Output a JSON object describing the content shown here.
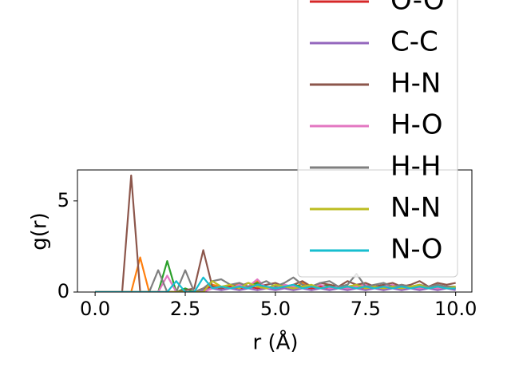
{
  "chart_data": {
    "type": "line",
    "x_label": "r (Å)",
    "y_label": "g(r)",
    "x": [
      0,
      0.25,
      0.5,
      0.75,
      1,
      1.25,
      1.5,
      1.75,
      2,
      2.25,
      2.5,
      2.75,
      3,
      3.25,
      3.5,
      3.75,
      4,
      4.25,
      4.5,
      4.75,
      5,
      5.25,
      5.5,
      5.75,
      6,
      6.25,
      6.5,
      6.75,
      7,
      7.25,
      7.5,
      7.75,
      8,
      8.25,
      8.5,
      8.75,
      9,
      9.25,
      9.5,
      9.75,
      10
    ],
    "series": [
      {
        "color": "#ff7f0e",
        "values": [
          0,
          0,
          0,
          0,
          0,
          1.9,
          0,
          0,
          0,
          0,
          0,
          0,
          0.2,
          0.4,
          0.3,
          0.2,
          0.5,
          0.3,
          0.6,
          0.2,
          0.3,
          0.4,
          0.2,
          0.5,
          0.3,
          0.2,
          0.4,
          0.3,
          0.2,
          0.3,
          0.4,
          0.2,
          0.3,
          0.2,
          0.4,
          0.3,
          0.2,
          0.3,
          0.2,
          0.3,
          0.2
        ]
      },
      {
        "color": "#2ca02c",
        "values": [
          0,
          0,
          0,
          0,
          0,
          0,
          0,
          0,
          1.7,
          0,
          0.2,
          0,
          0.1,
          0.3,
          0.2,
          0.4,
          0.2,
          0.3,
          0.5,
          0.2,
          0.3,
          0.2,
          0.4,
          0.3,
          0.2,
          0.3,
          0.4,
          0.2,
          0.3,
          0.2,
          0.3,
          0.2,
          0.4,
          0.2,
          0.3,
          0.2,
          0.3,
          0.2,
          0.3,
          0.2,
          0.2
        ]
      },
      {
        "name": "O-O",
        "color": "#d62728",
        "values": [
          0,
          0,
          0,
          0,
          0,
          0,
          0,
          0,
          0,
          0,
          0,
          0,
          0.2,
          0.3,
          0.2,
          0.3,
          0.2,
          0.3,
          0.2,
          0.3,
          0.2,
          0.3,
          0.2,
          0.3,
          0.2,
          0.3,
          0.2,
          0.3,
          0.2,
          0.3,
          0.2,
          0.3,
          0.2,
          0.3,
          0.2,
          0.3,
          0.2,
          0.3,
          0.2,
          0.3,
          0.2
        ]
      },
      {
        "name": "C-C",
        "color": "#9467bd",
        "values": [
          0,
          0,
          0,
          0,
          0,
          0,
          0,
          0,
          0,
          0,
          0,
          0,
          0.1,
          0.2,
          0.1,
          0.2,
          0.1,
          0.2,
          0.1,
          0.2,
          0.1,
          0.2,
          0.1,
          0.2,
          0.1,
          0.2,
          0.1,
          0.2,
          0.1,
          0.2,
          0.1,
          0.2,
          0.1,
          0.2,
          0.1,
          0.2,
          0.1,
          0.2,
          0.1,
          0.2,
          0.1
        ]
      },
      {
        "name": "H-N",
        "color": "#8c564b",
        "values": [
          0,
          0,
          0,
          0,
          6.4,
          0,
          0,
          0,
          0,
          0,
          0.1,
          0.2,
          2.3,
          0.3,
          0.2,
          0.4,
          0.3,
          0.5,
          0.3,
          0.4,
          0.5,
          0.3,
          0.4,
          0.6,
          0.3,
          0.5,
          0.4,
          0.3,
          0.6,
          0.4,
          0.5,
          0.3,
          0.4,
          0.5,
          0.3,
          0.4,
          0.6,
          0.3,
          0.5,
          0.4,
          0.5
        ]
      },
      {
        "name": "H-O",
        "color": "#e377c2",
        "values": [
          0,
          0,
          0,
          0,
          0,
          0,
          0,
          0,
          0.9,
          0,
          0,
          0,
          0,
          0.2,
          0.3,
          0.2,
          0.4,
          0.3,
          0.7,
          0.2,
          0.3,
          0.4,
          0.3,
          0.2,
          0.3,
          0.4,
          0.2,
          0.3,
          0.2,
          0.3,
          0.4,
          0.2,
          0.3,
          0.4,
          0.2,
          0.3,
          0.2,
          0.3,
          0.2,
          0.3,
          0.2
        ]
      },
      {
        "name": "H-H",
        "color": "#7f7f7f",
        "values": [
          0,
          0,
          0,
          0,
          0,
          0,
          0,
          1.2,
          0,
          0,
          1.2,
          0,
          0.2,
          0.6,
          0.7,
          0.4,
          0.5,
          0.3,
          0.4,
          0.6,
          0.3,
          0.5,
          0.8,
          0.4,
          0.3,
          0.5,
          0.6,
          0.3,
          0.4,
          1.0,
          0.3,
          0.4,
          0.5,
          0.3,
          0.4,
          0.3,
          0.4,
          0.3,
          0.4,
          0.3,
          0.3
        ]
      },
      {
        "name": "N-N",
        "color": "#bcbd22",
        "values": [
          0,
          0,
          0,
          0,
          0,
          0,
          0,
          0,
          0,
          0,
          0,
          0,
          0,
          0.6,
          0.3,
          0.4,
          0.2,
          0.5,
          0.3,
          0.2,
          0.4,
          0.3,
          0.2,
          0.3,
          0.4,
          0.2,
          0.3,
          0.2,
          0.3,
          0.4,
          0.2,
          0.3,
          0.2,
          0.3,
          0.2,
          0.3,
          0.4,
          0.2,
          0.3,
          0.2,
          0.3
        ]
      },
      {
        "name": "N-O",
        "color": "#17becf",
        "values": [
          0,
          0,
          0,
          0,
          0,
          0,
          0,
          0,
          0,
          0.6,
          0,
          0,
          0.8,
          0.2,
          0.3,
          0.2,
          0.3,
          0.2,
          0.4,
          0.3,
          0.2,
          0.3,
          0.4,
          0.2,
          0.3,
          0.2,
          0.3,
          0.2,
          0.3,
          0.2,
          0.3,
          0.2,
          0.3,
          0.2,
          0.3,
          0.2,
          0.3,
          0.2,
          0.3,
          0.2,
          0.2
        ]
      }
    ],
    "xlim": [
      -0.49,
      10.45
    ],
    "ylim": [
      0,
      6.7
    ],
    "xticks": [
      {
        "value": 0,
        "label": "0.0"
      },
      2.5,
      {
        "value": 5,
        "label": "5.0"
      },
      7.5,
      {
        "value": 10,
        "label": "10.0"
      }
    ],
    "yticks": [
      0,
      5
    ]
  }
}
